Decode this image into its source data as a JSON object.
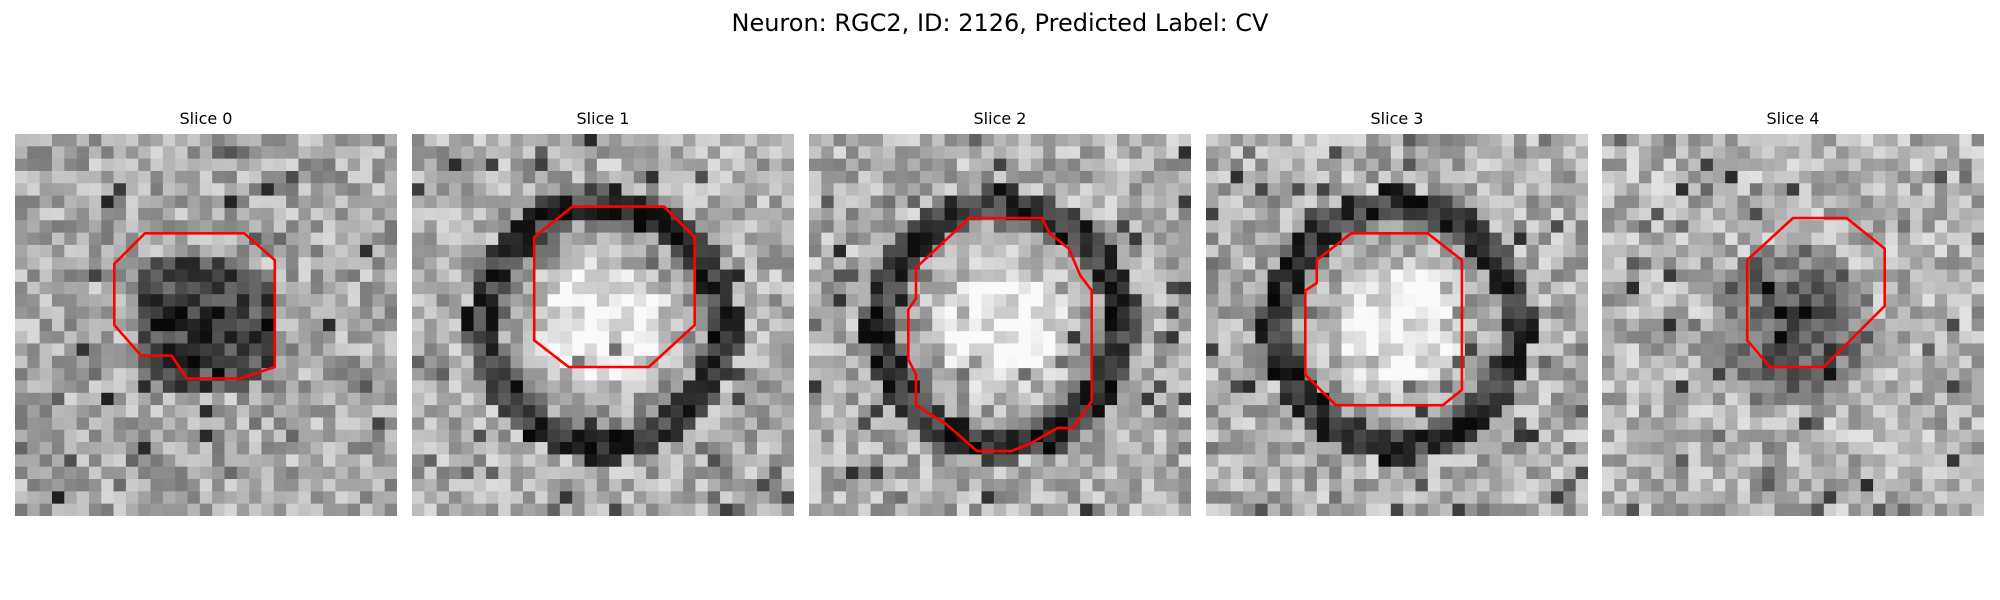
{
  "figure": {
    "title": "Neuron: RGC2, ID: 2126, Predicted Label: CV"
  },
  "contour_color": "#ff0000",
  "slices": [
    {
      "title": "Slice 0",
      "cell_shape": "dark-filled",
      "contour": [
        [
          0.34,
          0.26
        ],
        [
          0.6,
          0.26
        ],
        [
          0.68,
          0.33
        ],
        [
          0.68,
          0.61
        ],
        [
          0.59,
          0.64
        ],
        [
          0.45,
          0.64
        ],
        [
          0.41,
          0.58
        ],
        [
          0.33,
          0.58
        ],
        [
          0.26,
          0.5
        ],
        [
          0.26,
          0.34
        ]
      ]
    },
    {
      "title": "Slice 1",
      "cell_shape": "bright-center-dark-ring",
      "contour": [
        [
          0.42,
          0.19
        ],
        [
          0.66,
          0.19
        ],
        [
          0.74,
          0.27
        ],
        [
          0.74,
          0.5
        ],
        [
          0.62,
          0.61
        ],
        [
          0.41,
          0.61
        ],
        [
          0.32,
          0.54
        ],
        [
          0.32,
          0.27
        ]
      ]
    },
    {
      "title": "Slice 2",
      "cell_shape": "bright-center-dark-ring",
      "contour": [
        [
          0.42,
          0.22
        ],
        [
          0.61,
          0.22
        ],
        [
          0.63,
          0.26
        ],
        [
          0.68,
          0.3
        ],
        [
          0.71,
          0.37
        ],
        [
          0.74,
          0.41
        ],
        [
          0.74,
          0.64
        ],
        [
          0.74,
          0.7
        ],
        [
          0.69,
          0.77
        ],
        [
          0.65,
          0.77
        ],
        [
          0.58,
          0.81
        ],
        [
          0.53,
          0.83
        ],
        [
          0.44,
          0.83
        ],
        [
          0.36,
          0.76
        ],
        [
          0.28,
          0.71
        ],
        [
          0.28,
          0.63
        ],
        [
          0.26,
          0.59
        ],
        [
          0.26,
          0.46
        ],
        [
          0.28,
          0.43
        ],
        [
          0.28,
          0.35
        ]
      ]
    },
    {
      "title": "Slice 3",
      "cell_shape": "bright-center-dark-ring",
      "contour": [
        [
          0.38,
          0.26
        ],
        [
          0.58,
          0.26
        ],
        [
          0.67,
          0.33
        ],
        [
          0.67,
          0.67
        ],
        [
          0.62,
          0.71
        ],
        [
          0.57,
          0.71
        ],
        [
          0.43,
          0.71
        ],
        [
          0.34,
          0.71
        ],
        [
          0.26,
          0.63
        ],
        [
          0.26,
          0.41
        ],
        [
          0.29,
          0.39
        ],
        [
          0.29,
          0.33
        ]
      ]
    },
    {
      "title": "Slice 4",
      "cell_shape": "dark-diffuse",
      "contour": [
        [
          0.5,
          0.22
        ],
        [
          0.64,
          0.22
        ],
        [
          0.74,
          0.3
        ],
        [
          0.74,
          0.45
        ],
        [
          0.58,
          0.61
        ],
        [
          0.44,
          0.61
        ],
        [
          0.38,
          0.54
        ],
        [
          0.38,
          0.33
        ]
      ]
    }
  ]
}
